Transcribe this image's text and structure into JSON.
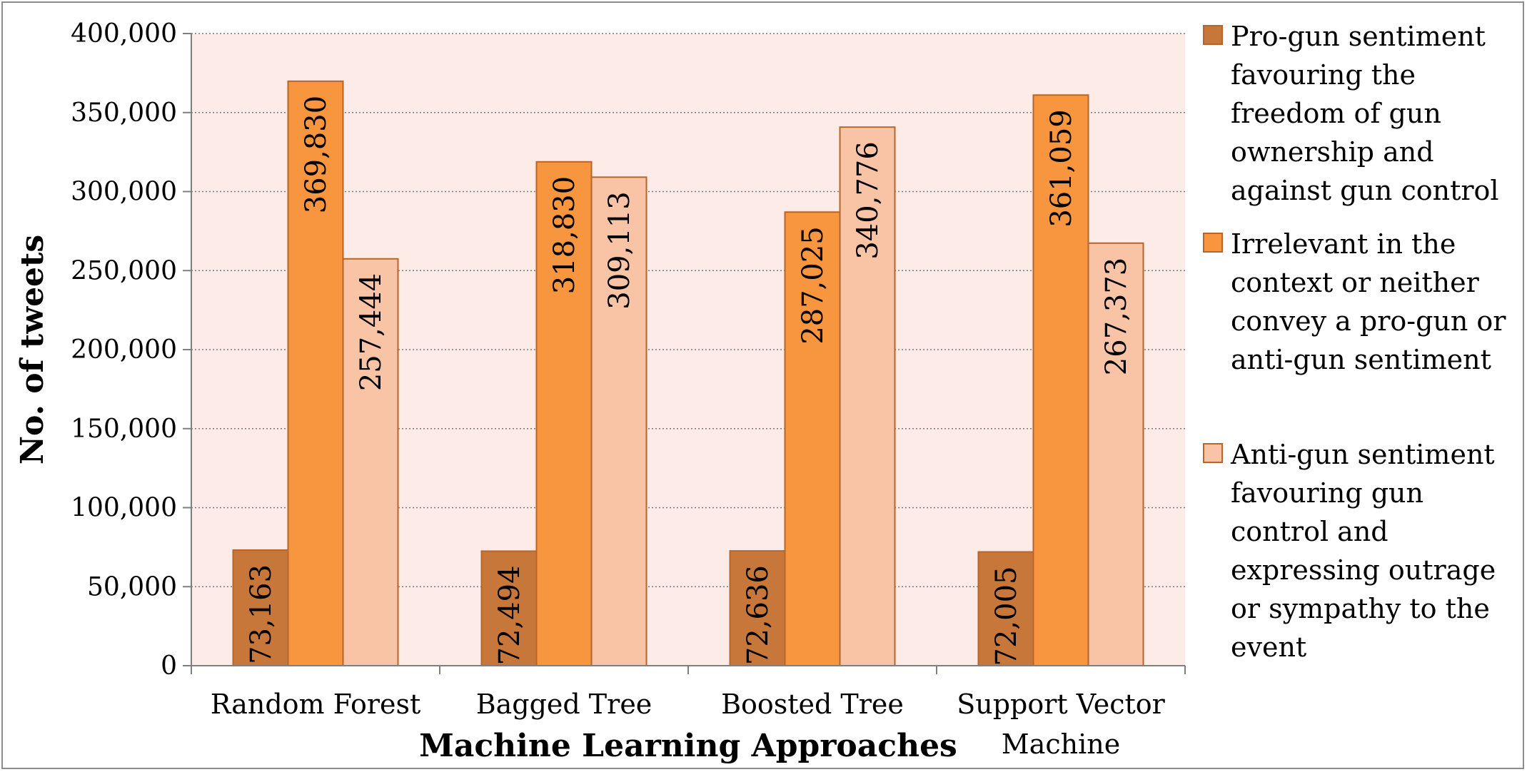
{
  "chart_data": {
    "type": "bar",
    "title": "",
    "xlabel": "Machine Learning Approaches",
    "ylabel": "No. of tweets",
    "ylim": [
      0,
      400000
    ],
    "yticks": [
      0,
      50000,
      100000,
      150000,
      200000,
      250000,
      300000,
      350000,
      400000
    ],
    "ytick_labels": [
      "0",
      "50,000",
      "100,000",
      "150,000",
      "200,000",
      "250,000",
      "300,000",
      "350,000",
      "400,000"
    ],
    "categories": [
      [
        "Random Forest"
      ],
      [
        "Bagged Tree"
      ],
      [
        "Boosted Tree"
      ],
      [
        "Support Vector",
        "Machine"
      ]
    ],
    "series": [
      {
        "name": "Pro-gun sentiment favouring the freedom of gun ownership and against gun control",
        "legend_lines": [
          "Pro-gun sentiment",
          "favouring the",
          "freedom of gun",
          "ownership and",
          "against gun control"
        ],
        "values": [
          73163,
          72494,
          72636,
          72005
        ],
        "labels": [
          "73,163",
          "72,494",
          "72,636",
          "72,005"
        ],
        "color": "#C8773A"
      },
      {
        "name": "Irrelevant in the context or neither convey a pro-gun or anti-gun sentiment",
        "legend_lines": [
          "Irrelevant in the",
          "context or neither",
          "convey a pro-gun or",
          "anti-gun sentiment"
        ],
        "values": [
          369830,
          318830,
          287025,
          361059
        ],
        "labels": [
          "369,830",
          "318,830",
          "287,025",
          "361,059"
        ],
        "color": "#F7963F"
      },
      {
        "name": "Anti-gun sentiment favouring gun control and expressing outrage or sympathy to the event",
        "legend_lines": [
          "Anti-gun sentiment",
          "favouring gun",
          "control and",
          "expressing outrage",
          "or sympathy to the",
          "event"
        ],
        "values": [
          257444,
          309113,
          340776,
          267373
        ],
        "labels": [
          "257,444",
          "309,113",
          "340,776",
          "267,373"
        ],
        "color": "#F9C3A6"
      }
    ],
    "bar_border_color": "#B8652A",
    "plot_background": "#FCEBE6",
    "grid": true,
    "legend_position": "right"
  }
}
